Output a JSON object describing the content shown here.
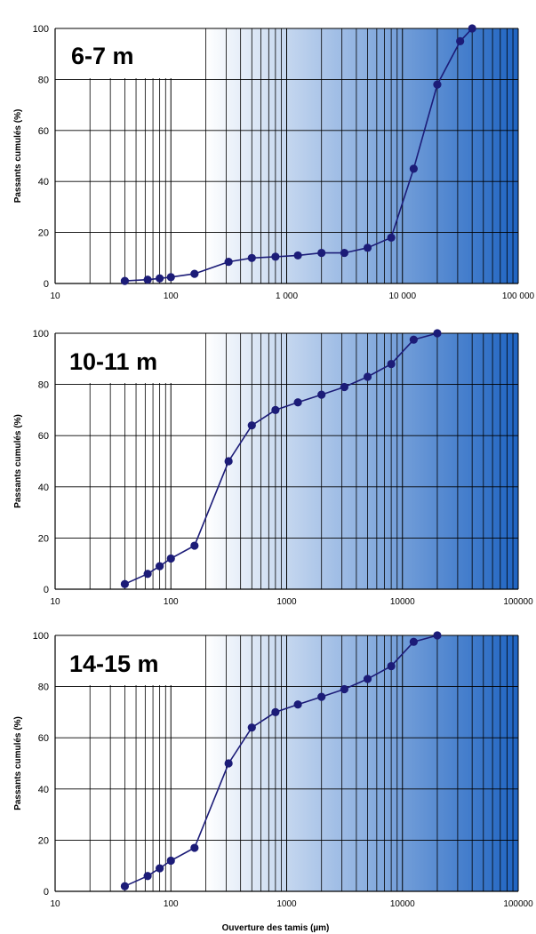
{
  "colors": {
    "grad_start": "#ffffff",
    "grad_end": "#1f64c2",
    "series": "#1c1c78",
    "grid": "#000000"
  },
  "chart_data": [
    {
      "type": "line",
      "label": "6-7 m",
      "ylabel": "Passants cumulés (%)",
      "xlabel": "",
      "x_scale": "log",
      "xlim": [
        10,
        100000
      ],
      "ylim": [
        0,
        100
      ],
      "x_ticks": [
        "10",
        "100",
        "1 000",
        "10 000",
        "100 000"
      ],
      "y_ticks": [
        "0",
        "20",
        "40",
        "60",
        "80",
        "100"
      ],
      "grid": true,
      "x": [
        40,
        63,
        80,
        100,
        160,
        315,
        500,
        800,
        1250,
        2000,
        3150,
        5000,
        8000,
        12500,
        20000,
        31500,
        40000
      ],
      "y": [
        1,
        1.5,
        2,
        2.5,
        3.8,
        8.5,
        10,
        10.5,
        11,
        12,
        12,
        14,
        18,
        45,
        78,
        95,
        100
      ]
    },
    {
      "type": "line",
      "label": "10-11 m",
      "ylabel": "Passants cumulés (%)",
      "xlabel": "",
      "x_scale": "log",
      "xlim": [
        10,
        100000
      ],
      "ylim": [
        0,
        100
      ],
      "x_ticks": [
        "10",
        "100",
        "1000",
        "10000",
        "100000"
      ],
      "y_ticks": [
        "0",
        "20",
        "40",
        "60",
        "80",
        "100"
      ],
      "grid": true,
      "x": [
        40,
        63,
        80,
        100,
        160,
        315,
        500,
        800,
        1250,
        2000,
        3150,
        5000,
        8000,
        12500,
        20000
      ],
      "y": [
        2,
        6,
        9,
        12,
        17,
        50,
        64,
        70,
        73,
        76,
        79,
        83,
        88,
        97.5,
        100
      ]
    },
    {
      "type": "line",
      "label": "14-15 m",
      "ylabel": "Passants cumulés (%)",
      "xlabel": "Ouverture des tamis (µm)",
      "x_scale": "log",
      "xlim": [
        10,
        100000
      ],
      "ylim": [
        0,
        100
      ],
      "x_ticks": [
        "10",
        "100",
        "1000",
        "10000",
        "100000"
      ],
      "y_ticks": [
        "0",
        "20",
        "40",
        "60",
        "80",
        "100"
      ],
      "grid": true,
      "x": [
        40,
        63,
        80,
        100,
        160,
        315,
        500,
        800,
        1250,
        2000,
        3150,
        5000,
        8000,
        12500,
        20000
      ],
      "y": [
        2,
        6,
        9,
        12,
        17,
        50,
        64,
        70,
        73,
        76,
        79,
        83,
        88,
        97.5,
        100
      ]
    }
  ]
}
